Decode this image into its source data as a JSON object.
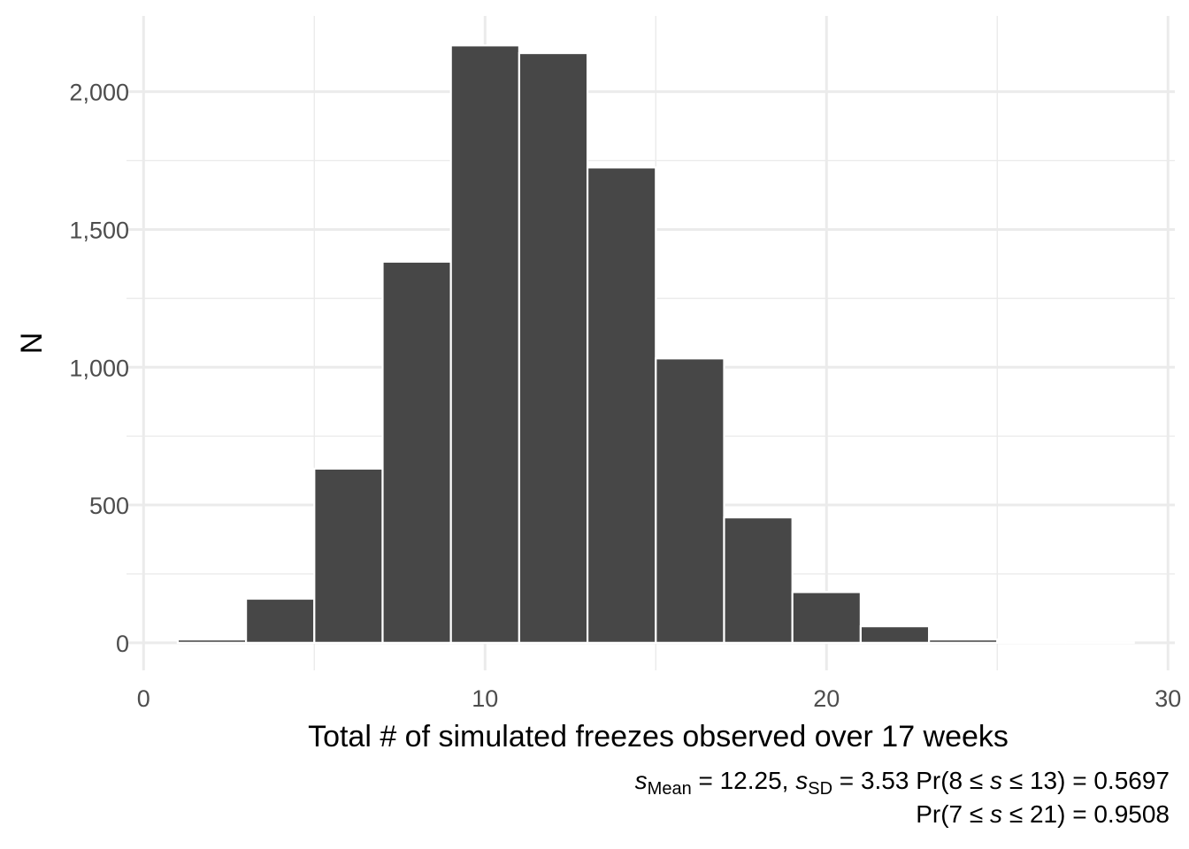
{
  "chart_data": {
    "type": "bar",
    "title": "",
    "xlabel": "Total # of simulated freezes observed over 17 weeks",
    "ylabel": "N",
    "xlim": [
      -0.5,
      30.2
    ],
    "ylim": [
      -100,
      2275
    ],
    "x_ticks": [
      0,
      10,
      20,
      30
    ],
    "x_tick_labels": [
      "0",
      "10",
      "20",
      "30"
    ],
    "y_ticks": [
      0,
      500,
      1000,
      1500,
      2000
    ],
    "y_tick_labels": [
      "0",
      "500",
      "1,000",
      "1,500",
      "2,000"
    ],
    "bin_edges": [
      1,
      3,
      5,
      7,
      9,
      11,
      13,
      15,
      17,
      19,
      21,
      23,
      25,
      27,
      29
    ],
    "counts": [
      12,
      160,
      632,
      1383,
      2168,
      2140,
      1725,
      1032,
      455,
      184,
      60,
      12,
      4,
      2
    ],
    "grid": true,
    "bar_color": "#474747",
    "grid_color": "#ebebeb"
  },
  "caption": {
    "line1": {
      "s1": "s",
      "sub1": "Mean",
      "t1": " = 12.25, ",
      "s2": "s",
      "sub2": "SD",
      "t2": " = 3.53 Pr(8 ≤ ",
      "s3": "s",
      "t3": " ≤ 13) = 0.5697"
    },
    "line2": {
      "t1": "Pr(7 ≤ ",
      "s1": "s",
      "t2": " ≤ 21) = 0.9508"
    }
  }
}
